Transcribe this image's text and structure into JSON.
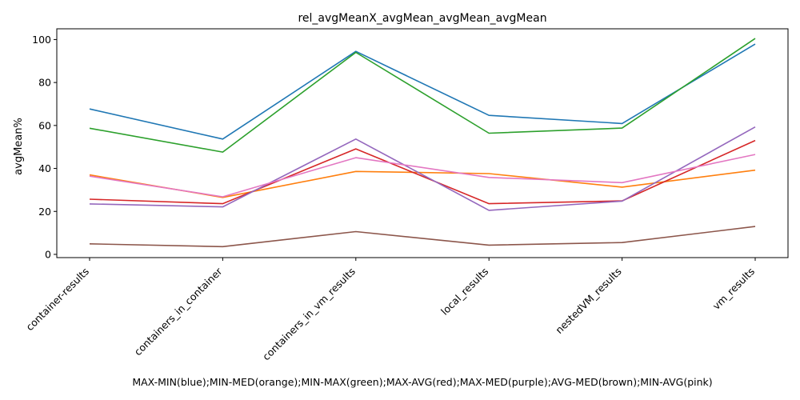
{
  "chart_data": {
    "type": "line",
    "title": "rel_avgMeanX_avgMean_avgMean_avgMean",
    "xlabel": "MAX-MIN(blue);MIN-MED(orange);MIN-MAX(green);MAX-AVG(red);MAX-MED(purple);AVG-MED(brown);MIN-AVG(pink)",
    "ylabel": "avgMean%",
    "ylim": [
      -1.5,
      105
    ],
    "yticks": [
      0,
      20,
      40,
      60,
      80,
      100
    ],
    "categories": [
      "container-results",
      "containers_in_container",
      "containers_in_vm_results",
      "local_results",
      "nestedVM_results",
      "vm_results"
    ],
    "grid": false,
    "legend": "none",
    "series": [
      {
        "color": "#1f77b4",
        "values": [
          67.7,
          53.7,
          94.5,
          64.7,
          60.9,
          97.9
        ]
      },
      {
        "color": "#ff7f0e",
        "values": [
          37.0,
          26.5,
          38.6,
          37.6,
          31.3,
          39.2
        ]
      },
      {
        "color": "#2ca02c",
        "values": [
          58.7,
          47.6,
          94.0,
          56.4,
          58.8,
          100.5
        ]
      },
      {
        "color": "#d62728",
        "values": [
          25.7,
          23.6,
          49.1,
          23.6,
          24.9,
          53.0
        ]
      },
      {
        "color": "#9467bd",
        "values": [
          23.5,
          22.1,
          53.7,
          20.5,
          24.8,
          59.3
        ]
      },
      {
        "color": "#8c564b",
        "values": [
          4.9,
          3.6,
          10.6,
          4.3,
          5.5,
          13.0
        ]
      },
      {
        "color": "#e377c2",
        "values": [
          36.4,
          26.8,
          45.0,
          35.8,
          33.4,
          46.5
        ]
      }
    ]
  }
}
